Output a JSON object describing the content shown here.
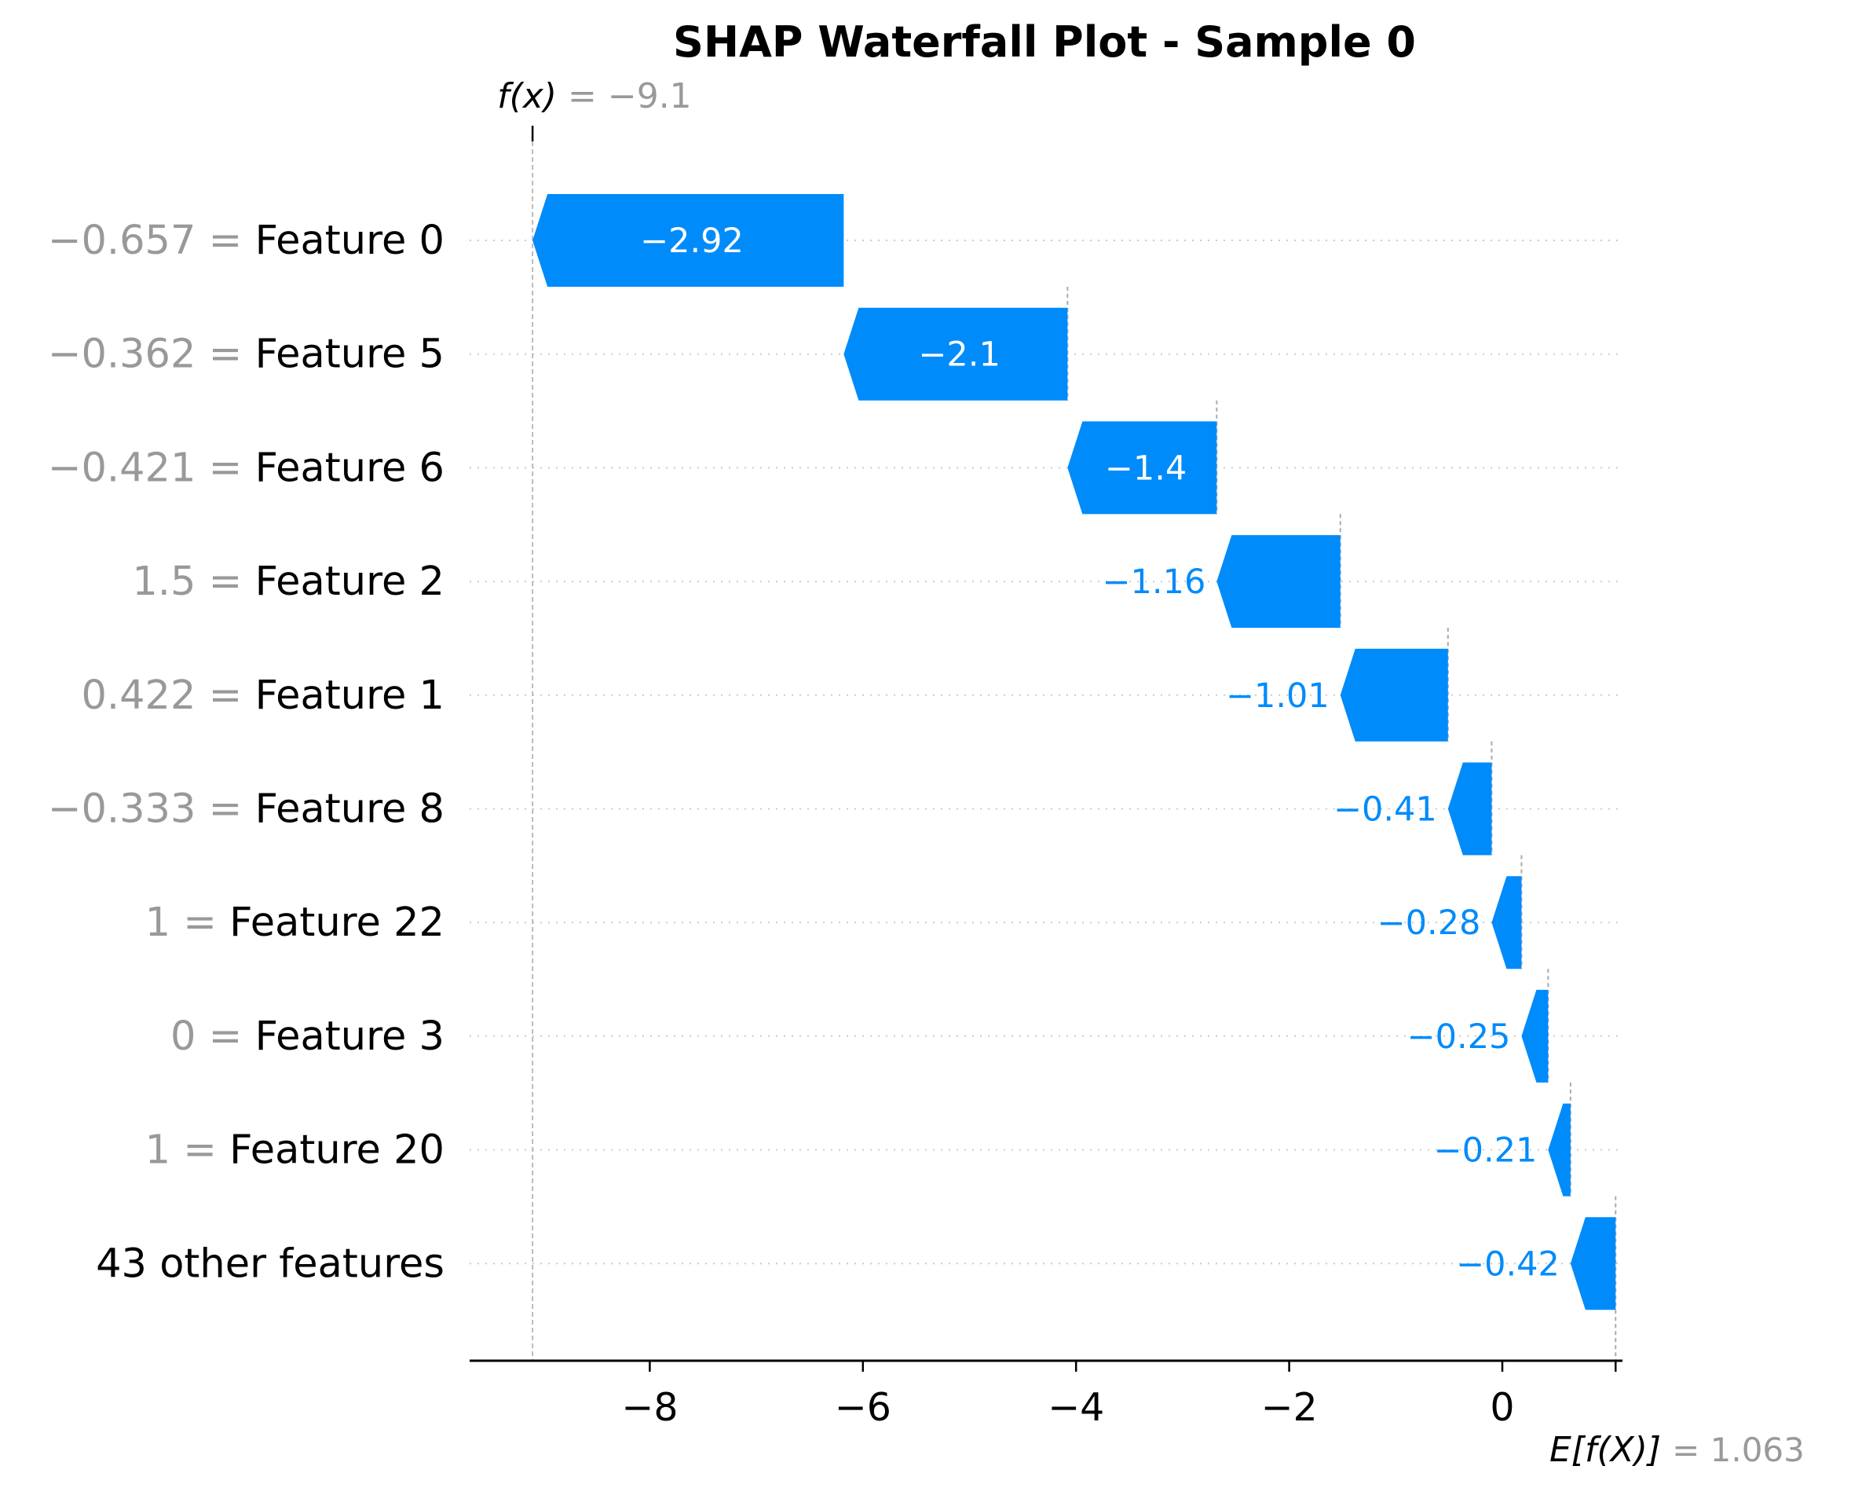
{
  "chart_data": {
    "type": "bar",
    "subtype": "waterfall",
    "title": "SHAP Waterfall Plot - Sample 0",
    "orientation": "horizontal",
    "fx_label": "f(x)",
    "fx_value": "= −9.1",
    "fx": -9.1,
    "efx_label": "E[f(X)]",
    "efx_value": "= 1.063",
    "base_value": 1.063,
    "xlim": [
      -9.6,
      1.2
    ],
    "x_ticks": [
      -8,
      -6,
      -4,
      -2,
      0
    ],
    "x_tick_labels": [
      "−8",
      "−6",
      "−4",
      "−2",
      "0"
    ],
    "grid": "dotted horizontal row lines",
    "bar_color": "#008bfb",
    "label_color_outside": "#008bfb",
    "feature_value_color": "#999999",
    "rows": [
      {
        "feature_value": "−0.657 =",
        "feature_name": "Feature 0",
        "shap": -2.92,
        "label": "−2.92",
        "start": -6.18,
        "end": -9.1
      },
      {
        "feature_value": "−0.362 =",
        "feature_name": "Feature 5",
        "shap": -2.1,
        "label": "−2.1",
        "start": -4.08,
        "end": -6.18
      },
      {
        "feature_value": "−0.421 =",
        "feature_name": "Feature 6",
        "shap": -1.4,
        "label": "−1.4",
        "start": -2.68,
        "end": -4.08
      },
      {
        "feature_value": "1.5 =",
        "feature_name": "Feature 2",
        "shap": -1.16,
        "label": "−1.16",
        "start": -1.52,
        "end": -2.68
      },
      {
        "feature_value": "0.422 =",
        "feature_name": "Feature 1",
        "shap": -1.01,
        "label": "−1.01",
        "start": -0.51,
        "end": -1.52
      },
      {
        "feature_value": "−0.333 =",
        "feature_name": "Feature 8",
        "shap": -0.41,
        "label": "−0.41",
        "start": -0.1,
        "end": -0.51
      },
      {
        "feature_value": "1 =",
        "feature_name": "Feature 22",
        "shap": -0.28,
        "label": "−0.28",
        "start": 0.18,
        "end": -0.1
      },
      {
        "feature_value": "0 =",
        "feature_name": "Feature 3",
        "shap": -0.25,
        "label": "−0.25",
        "start": 0.43,
        "end": 0.18
      },
      {
        "feature_value": "1 =",
        "feature_name": "Feature 20",
        "shap": -0.21,
        "label": "−0.21",
        "start": 0.64,
        "end": 0.43
      },
      {
        "feature_value": "",
        "feature_name": "43 other features",
        "shap": -0.42,
        "label": "−0.42",
        "start": 1.063,
        "end": 0.64
      }
    ]
  }
}
